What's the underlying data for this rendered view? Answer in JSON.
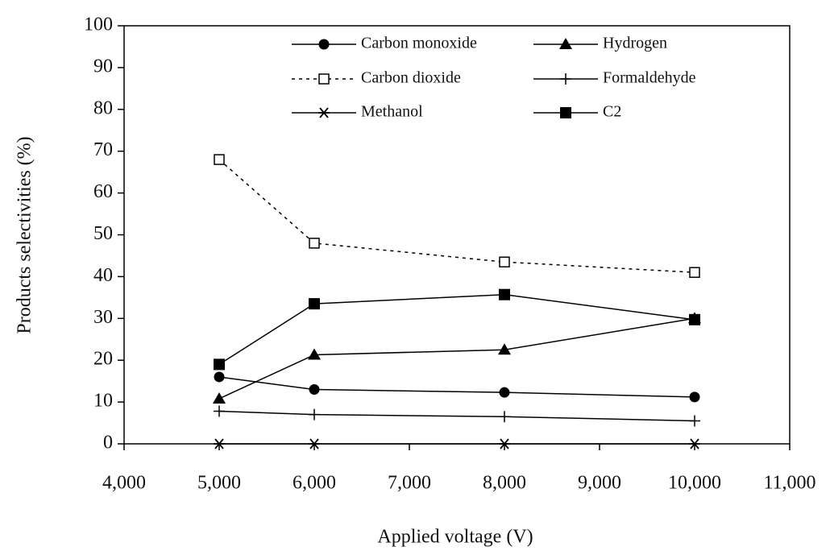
{
  "chart_data": {
    "type": "line",
    "xlabel": "Applied voltage (V)",
    "ylabel": "Products selectivities (%)",
    "x": [
      5000,
      6000,
      8000,
      10000
    ],
    "xlim": [
      4000,
      11000
    ],
    "xticks": [
      {
        "value": 4000,
        "label": "4,000"
      },
      {
        "value": 5000,
        "label": "5,000"
      },
      {
        "value": 6000,
        "label": "6,000"
      },
      {
        "value": 7000,
        "label": "7,000"
      },
      {
        "value": 8000,
        "label": "8,000"
      },
      {
        "value": 9000,
        "label": "9,000"
      },
      {
        "value": 10000,
        "label": "10,000"
      },
      {
        "value": 11000,
        "label": "11,000"
      }
    ],
    "ylim": [
      0,
      100
    ],
    "yticks": [
      0,
      10,
      20,
      30,
      40,
      50,
      60,
      70,
      80,
      90,
      100
    ],
    "grid": false,
    "legend": "upper center",
    "series": [
      {
        "name": "Carbon monoxide",
        "color": "#000000",
        "marker": "circle",
        "dash": "solid",
        "values": [
          16,
          13,
          12.3,
          11.2
        ]
      },
      {
        "name": "Hydrogen",
        "color": "#000000",
        "marker": "triangle",
        "dash": "solid",
        "values": [
          10.8,
          21.3,
          22.5,
          30
        ]
      },
      {
        "name": "Carbon dioxide",
        "color": "#000000",
        "marker": "open-square",
        "dash": "dotted",
        "values": [
          68,
          48,
          43.5,
          41
        ]
      },
      {
        "name": "Formaldehyde",
        "color": "#000000",
        "marker": "plus",
        "dash": "solid",
        "values": [
          7.8,
          7,
          6.5,
          5.5
        ]
      },
      {
        "name": "Methanol",
        "color": "#000000",
        "marker": "asterisk",
        "dash": "solid",
        "values": [
          0,
          0,
          0,
          0
        ]
      },
      {
        "name": "C2",
        "color": "#000000",
        "marker": "square",
        "dash": "solid",
        "values": [
          19,
          33.5,
          35.7,
          29.7
        ]
      }
    ]
  }
}
